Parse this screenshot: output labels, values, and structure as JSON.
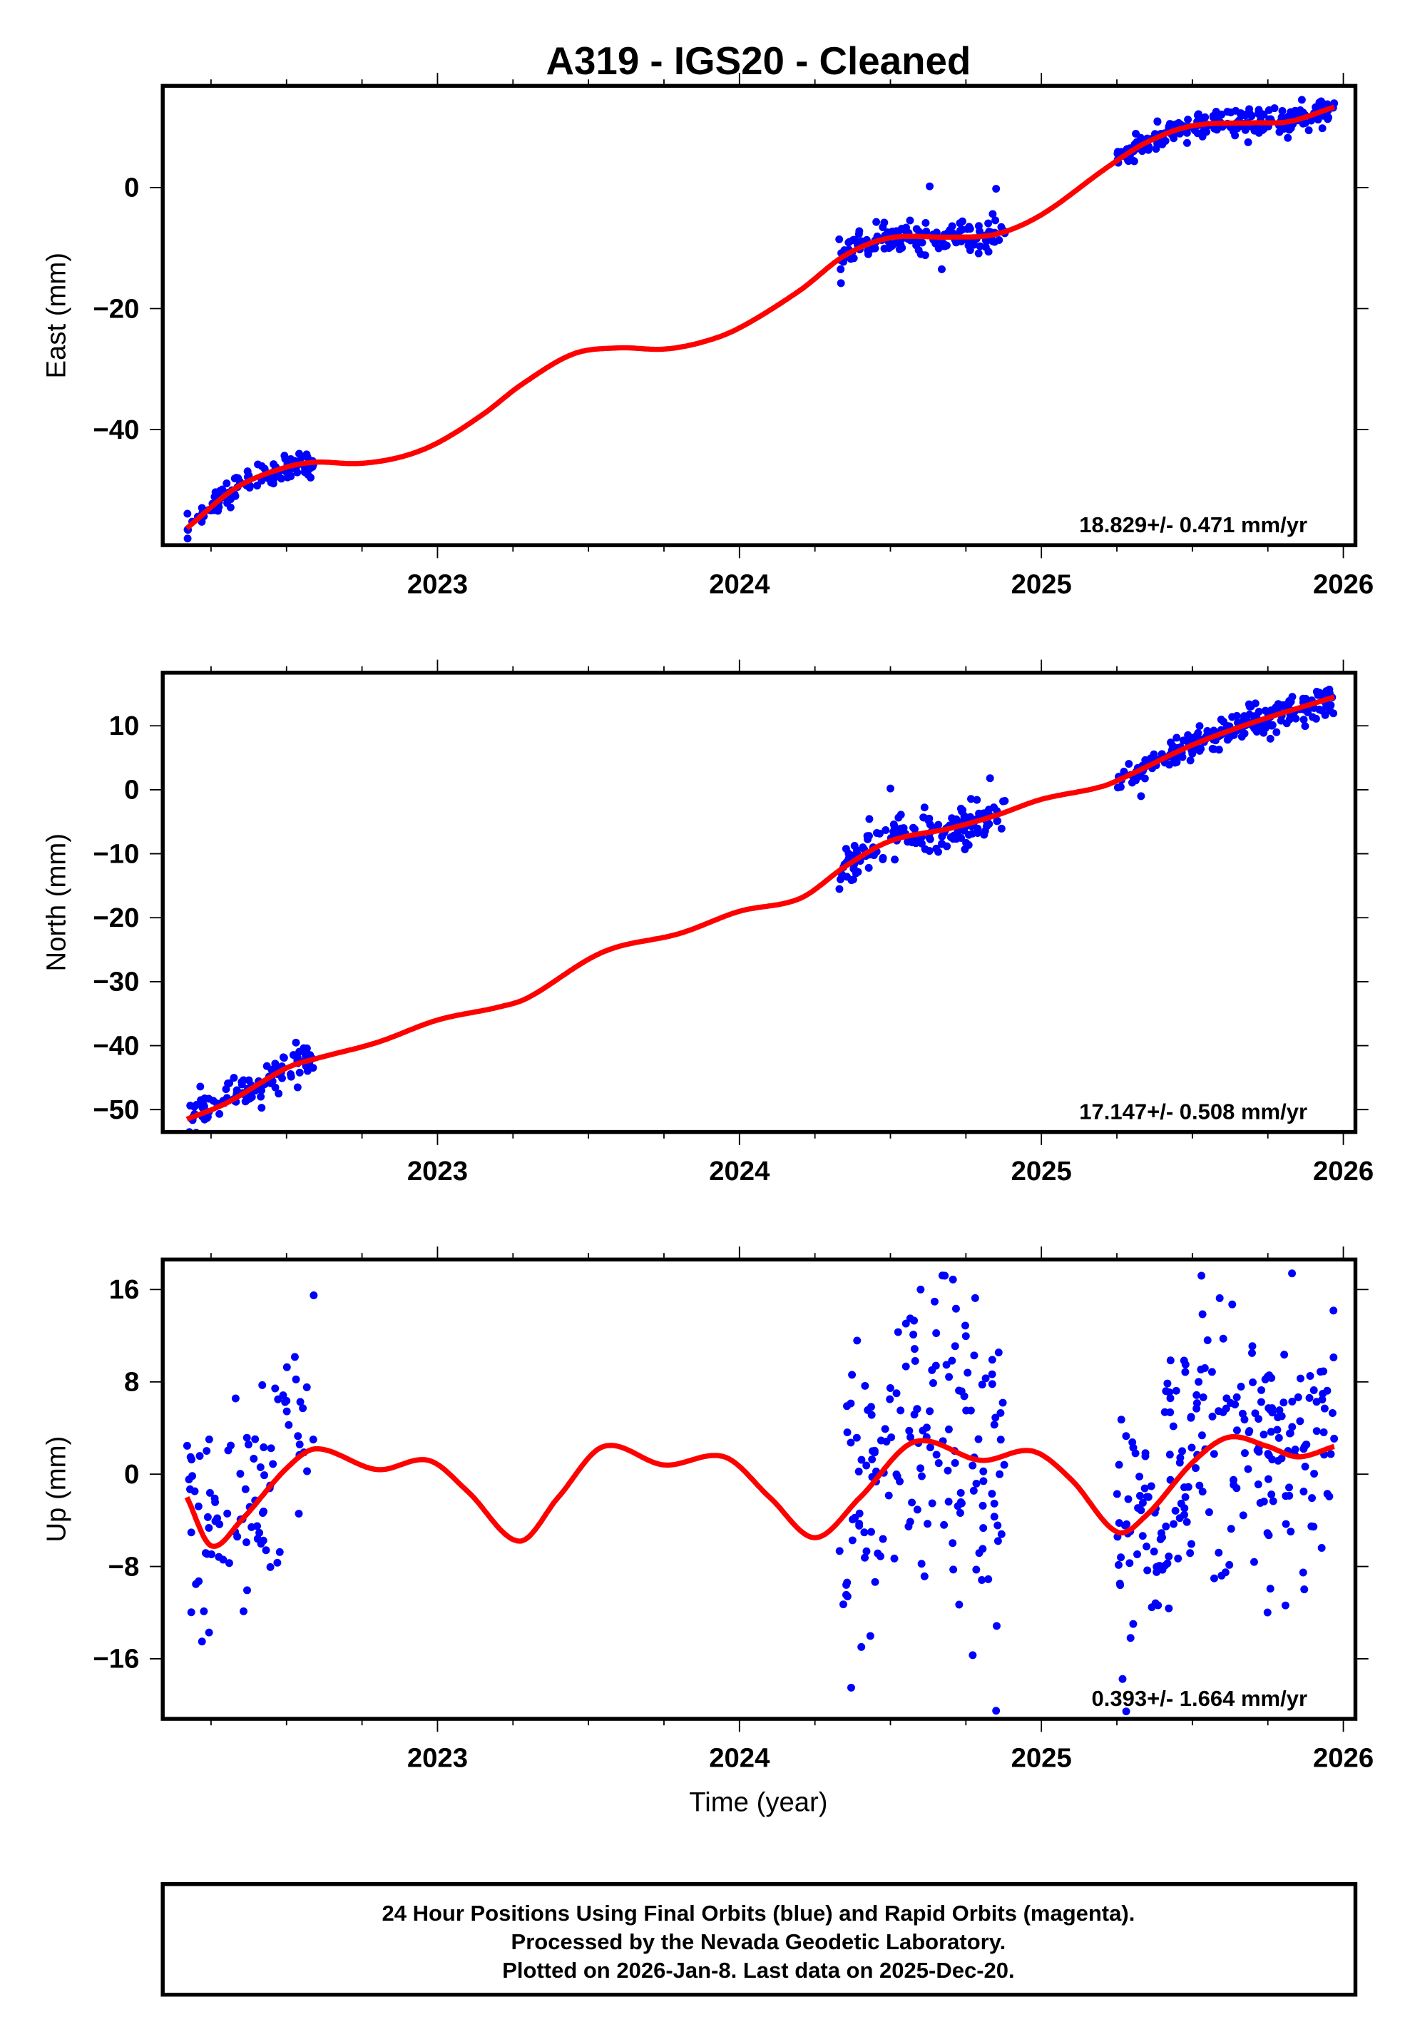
{
  "chart_data": {
    "type": "scatter",
    "title": "A319  - IGS20 - Cleaned",
    "xlabel": "Time (year)",
    "xlim": [
      2022.09,
      2026.04
    ],
    "x_ticks": [
      2023,
      2024,
      2025,
      2026
    ],
    "colors": {
      "data": "#0000ff",
      "model": "#ff0000",
      "axes": "#000000"
    },
    "panels": [
      {
        "name": "east",
        "ylabel": "East (mm)",
        "ylim": [
          -59.1,
          16.8
        ],
        "y_ticks": [
          0,
          -20,
          -40
        ],
        "rate_label": "18.829+/- 0.471 mm/yr",
        "model_curve": [
          [
            2022.17,
            -56.3
          ],
          [
            2022.33,
            -49.7
          ],
          [
            2022.48,
            -46.5
          ],
          [
            2022.59,
            -45.4
          ],
          [
            2022.74,
            -45.6
          ],
          [
            2022.88,
            -44.5
          ],
          [
            2023.0,
            -42.2
          ],
          [
            2023.15,
            -37.5
          ],
          [
            2023.28,
            -32.5
          ],
          [
            2023.45,
            -27.5
          ],
          [
            2023.6,
            -26.5
          ],
          [
            2023.75,
            -26.7
          ],
          [
            2023.88,
            -25.5
          ],
          [
            2024.0,
            -23.2
          ],
          [
            2024.2,
            -17.0
          ],
          [
            2024.35,
            -11.2
          ],
          [
            2024.5,
            -8.3
          ],
          [
            2024.7,
            -8.2
          ],
          [
            2024.85,
            -7.7
          ],
          [
            2025.0,
            -4.5
          ],
          [
            2025.22,
            3.4
          ],
          [
            2025.35,
            7.5
          ],
          [
            2025.5,
            10.2
          ],
          [
            2025.7,
            10.7
          ],
          [
            2025.82,
            10.9
          ],
          [
            2025.97,
            13.3
          ]
        ],
        "data_segments": [
          {
            "start": 2022.17,
            "end": 2022.59,
            "sigma": 1.1,
            "count": 110
          },
          {
            "start": 2024.33,
            "end": 2024.88,
            "sigma": 1.2,
            "count": 160
          },
          {
            "start": 2025.25,
            "end": 2025.97,
            "sigma": 1.1,
            "count": 230
          }
        ],
        "outliers": [
          [
            2024.63,
            0.2
          ],
          [
            2024.85,
            -0.2
          ],
          [
            2024.67,
            -13.5
          ]
        ]
      },
      {
        "name": "north",
        "ylabel": "North (mm)",
        "ylim": [
          -53.5,
          18.3
        ],
        "y_ticks": [
          10,
          0,
          -10,
          -20,
          -30,
          -40,
          -50
        ],
        "rate_label": "17.147+/- 0.508 mm/yr",
        "model_curve": [
          [
            2022.17,
            -51.5
          ],
          [
            2022.3,
            -49.0
          ],
          [
            2022.5,
            -43.5
          ],
          [
            2022.6,
            -42.0
          ],
          [
            2022.8,
            -39.5
          ],
          [
            2023.0,
            -36.0
          ],
          [
            2023.2,
            -34.0
          ],
          [
            2023.3,
            -32.5
          ],
          [
            2023.5,
            -26.5
          ],
          [
            2023.6,
            -24.5
          ],
          [
            2023.8,
            -22.5
          ],
          [
            2024.0,
            -19.0
          ],
          [
            2024.2,
            -17.0
          ],
          [
            2024.35,
            -12.0
          ],
          [
            2024.5,
            -8.0
          ],
          [
            2024.7,
            -6.0
          ],
          [
            2024.85,
            -4.0
          ],
          [
            2025.0,
            -1.5
          ],
          [
            2025.2,
            0.5
          ],
          [
            2025.3,
            2.5
          ],
          [
            2025.5,
            7.0
          ],
          [
            2025.7,
            10.5
          ],
          [
            2025.97,
            14.5
          ]
        ],
        "data_segments": [
          {
            "start": 2022.17,
            "end": 2022.59,
            "sigma": 1.4,
            "count": 110
          },
          {
            "start": 2024.33,
            "end": 2024.88,
            "sigma": 1.6,
            "count": 160
          },
          {
            "start": 2025.25,
            "end": 2025.97,
            "sigma": 1.2,
            "count": 230
          }
        ],
        "outliers": [
          [
            2024.5,
            0.2
          ],
          [
            2024.83,
            1.8
          ],
          [
            2025.33,
            -1.0
          ]
        ]
      },
      {
        "name": "up",
        "ylabel": "Up (mm)",
        "ylim": [
          -21.2,
          18.6
        ],
        "y_ticks": [
          16,
          8,
          0,
          -8,
          -16
        ],
        "rate_label": "0.393+/- 1.664 mm/yr",
        "model_curve": [
          [
            2022.17,
            -2.0
          ],
          [
            2022.25,
            -6.2
          ],
          [
            2022.35,
            -4.0
          ],
          [
            2022.5,
            0.5
          ],
          [
            2022.6,
            2.2
          ],
          [
            2022.8,
            0.4
          ],
          [
            2022.97,
            1.2
          ],
          [
            2023.1,
            -1.5
          ],
          [
            2023.27,
            -5.8
          ],
          [
            2023.4,
            -2.0
          ],
          [
            2023.55,
            2.4
          ],
          [
            2023.75,
            0.8
          ],
          [
            2023.95,
            1.5
          ],
          [
            2024.1,
            -2.0
          ],
          [
            2024.25,
            -5.5
          ],
          [
            2024.4,
            -2.0
          ],
          [
            2024.58,
            2.8
          ],
          [
            2024.8,
            1.2
          ],
          [
            2024.97,
            2.0
          ],
          [
            2025.1,
            -0.5
          ],
          [
            2025.25,
            -5.0
          ],
          [
            2025.35,
            -3.5
          ],
          [
            2025.5,
            1.0
          ],
          [
            2025.62,
            3.2
          ],
          [
            2025.75,
            2.4
          ],
          [
            2025.85,
            1.5
          ],
          [
            2025.97,
            2.4
          ]
        ],
        "data_segments": [
          {
            "start": 2022.17,
            "end": 2022.59,
            "sigma": 5.0,
            "count": 90
          },
          {
            "start": 2024.33,
            "end": 2024.88,
            "sigma": 6.5,
            "count": 160
          },
          {
            "start": 2025.25,
            "end": 2025.97,
            "sigma": 5.5,
            "count": 230
          }
        ],
        "outliers": [
          [
            2022.59,
            15.5
          ],
          [
            2024.6,
            16.0
          ],
          [
            2024.68,
            17.2
          ],
          [
            2024.85,
            -20.5
          ],
          [
            2024.37,
            -18.5
          ],
          [
            2025.53,
            17.2
          ],
          [
            2025.83,
            17.4
          ],
          [
            2022.22,
            -14.5
          ]
        ]
      }
    ]
  },
  "footer": {
    "line1": "24 Hour Positions Using Final Orbits (blue) and Rapid Orbits (magenta).",
    "line2": "Processed by the Nevada Geodetic Laboratory.",
    "line3": "Plotted on 2026-Jan-8. Last data on 2025-Dec-20."
  }
}
